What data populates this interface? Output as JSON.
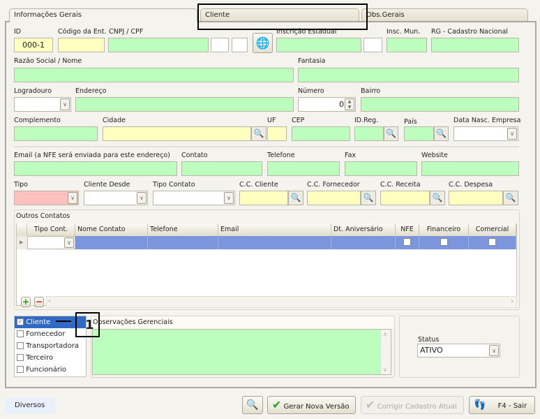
{
  "tabs": [
    "Informações Gerais",
    "Cliente",
    "Obs.Gerais"
  ],
  "labels": {
    "id": "ID",
    "codigo": "Código da Ent.",
    "cnpj": "CNPJ / CPF",
    "ie": "Inscrição Estadual",
    "im": "Insc. Mun.",
    "rg": "RG - Cadastro Nacional",
    "razao": "Razão Social / Nome",
    "fantasia": "Fantasia",
    "logradouro": "Logradouro",
    "endereco": "Endereço",
    "numero": "Número",
    "bairro": "Bairro",
    "complemento": "Complemento",
    "cidade": "Cidade",
    "uf": "UF",
    "cep": "CEP",
    "idreg": "ID.Reg.",
    "pais": "País",
    "datanasc": "Data Nasc. Empresa",
    "email": "Email (a NFE será enviada para este endereço)",
    "contato": "Contato",
    "telefone": "Telefone",
    "fax": "Fax",
    "website": "Website",
    "tipo": "Tipo",
    "clientedesde": "Cliente Desde",
    "tipocontato": "Tipo Contato",
    "ccc": "C.C. Cliente",
    "ccf": "C.C. Fornecedor",
    "ccr": "C.C. Receita",
    "ccd": "C.C. Despesa"
  },
  "values": {
    "id": "000-1",
    "numero": "0"
  },
  "contacts": {
    "title": "Outros Contatos",
    "columns": [
      "Tipo Cont.",
      "Nome Contato",
      "Telefone",
      "Email",
      "Dt. Aniversário",
      "NFE",
      "Financeiro",
      "Comercial"
    ]
  },
  "types": [
    {
      "label": "Cliente",
      "checked": true
    },
    {
      "label": "Fornecedor",
      "checked": false
    },
    {
      "label": "Transportadora",
      "checked": false
    },
    {
      "label": "Terceiro",
      "checked": false
    },
    {
      "label": "Funcionário",
      "checked": false
    }
  ],
  "obs_title": "Observações Gerenciais",
  "status": {
    "label": "Status",
    "value": "ATIVO"
  },
  "annotation": "1",
  "footer": {
    "diversos": "Diversos",
    "gerar": "Gerar Nova Versão",
    "corrigir": "Corrigir Cadastro Atual",
    "sair": "F4 - Sair"
  }
}
